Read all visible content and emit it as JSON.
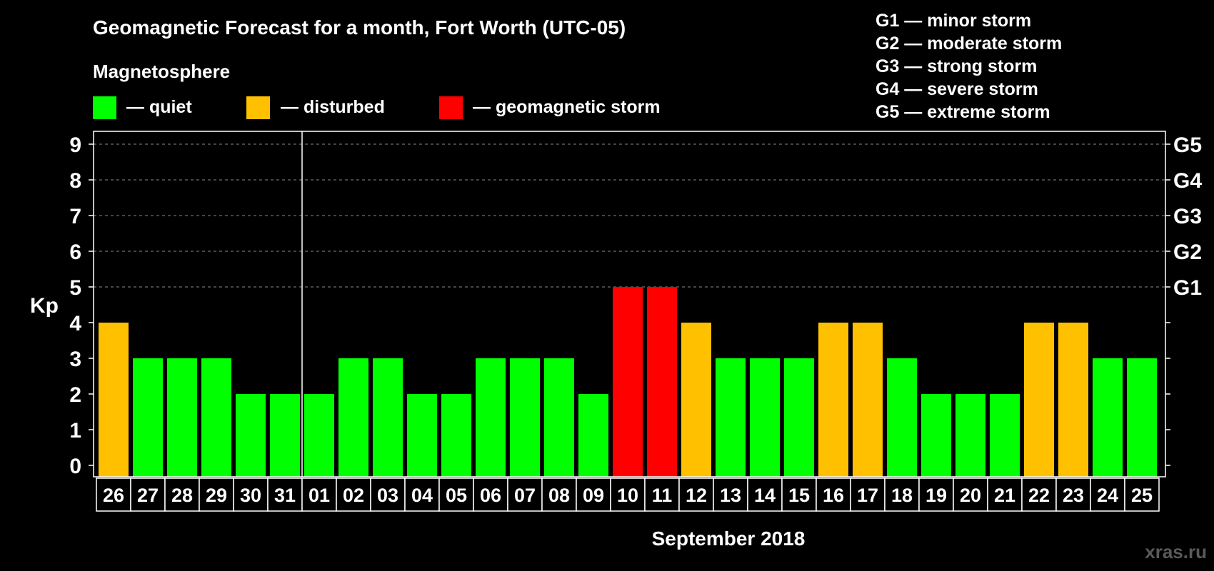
{
  "chart_data": {
    "type": "bar",
    "title": "Geomagnetic Forecast for a month, Fort Worth (UTC-05)",
    "legend_title": "Magnetosphere",
    "legend": [
      {
        "label": "— quiet",
        "color": "#00ff00"
      },
      {
        "label": "— disturbed",
        "color": "#ffc000"
      },
      {
        "label": "— geomagnetic storm",
        "color": "#ff0000"
      }
    ],
    "storm_scale": [
      "G1 — minor storm",
      "G2 — moderate storm",
      "G3 — strong storm",
      "G4 — severe storm",
      "G5 — extreme storm"
    ],
    "ylabel": "Kp",
    "ylim": [
      0,
      9
    ],
    "yticks": [
      "0",
      "1",
      "2",
      "3",
      "4",
      "5",
      "6",
      "7",
      "8",
      "9"
    ],
    "right_axis": [
      {
        "kp": 5,
        "label": "G1"
      },
      {
        "kp": 6,
        "label": "G2"
      },
      {
        "kp": 7,
        "label": "G3"
      },
      {
        "kp": 8,
        "label": "G4"
      },
      {
        "kp": 9,
        "label": "G5"
      }
    ],
    "xlabel": "September 2018",
    "month_divider_after_index": 5,
    "categories": [
      "26",
      "27",
      "28",
      "29",
      "30",
      "31",
      "01",
      "02",
      "03",
      "04",
      "05",
      "06",
      "07",
      "08",
      "09",
      "10",
      "11",
      "12",
      "13",
      "14",
      "15",
      "16",
      "17",
      "18",
      "19",
      "20",
      "21",
      "22",
      "23",
      "24",
      "25"
    ],
    "values": [
      4,
      3,
      3,
      3,
      2,
      2,
      2,
      3,
      3,
      2,
      2,
      3,
      3,
      3,
      2,
      5,
      5,
      4,
      3,
      3,
      3,
      4,
      4,
      3,
      2,
      2,
      2,
      4,
      4,
      3,
      3
    ],
    "colors": {
      "quiet": "#00ff00",
      "disturbed": "#ffc000",
      "storm": "#ff0000"
    },
    "grid": "dashed, at G levels"
  },
  "watermark": "xras.ru"
}
